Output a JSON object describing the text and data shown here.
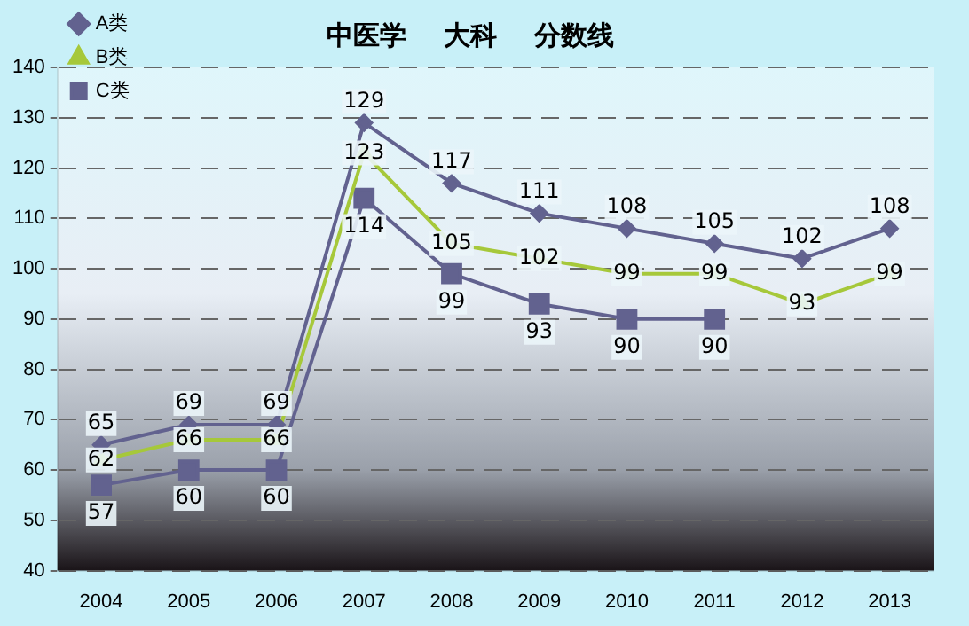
{
  "chart_data": {
    "type": "line",
    "title": "中医学    大科    分数线",
    "categories": [
      "2004",
      "2005",
      "2006",
      "2007",
      "2008",
      "2009",
      "2010",
      "2011",
      "2012",
      "2013"
    ],
    "series": [
      {
        "name": "A类",
        "color": "#62628f",
        "marker": "diamond",
        "values": [
          65,
          69,
          69,
          129,
          117,
          111,
          108,
          105,
          102,
          108
        ]
      },
      {
        "name": "B类",
        "color": "#a6c83a",
        "marker": "triangle",
        "values": [
          62,
          66,
          66,
          123,
          105,
          102,
          99,
          99,
          93,
          99
        ]
      },
      {
        "name": "C类",
        "color": "#62628f",
        "marker": "square",
        "values": [
          57,
          60,
          60,
          114,
          99,
          93,
          90,
          90,
          null,
          null
        ]
      }
    ],
    "ylim": [
      40,
      140
    ],
    "yticks": [
      40,
      50,
      60,
      70,
      80,
      90,
      100,
      110,
      120,
      130,
      140
    ],
    "grid": "y",
    "legend": "top left",
    "data_labels": true
  }
}
